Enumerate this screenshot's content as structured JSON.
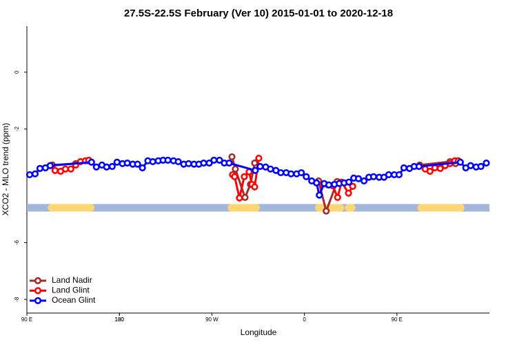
{
  "chart_data": {
    "type": "line",
    "title": "27.5S-22.5S February (Ver 10)   2015-01-01 to 2020-12-18",
    "x_label": "Longitude",
    "y_label": "XCO2 - MLO trend (ppm)",
    "xlim": [
      90,
      540
    ],
    "ylim": [
      1.62,
      -8.48
    ],
    "xticks": [
      {
        "value": 90,
        "label": "90 E"
      },
      180,
      {
        "value": 270,
        "label": "90 W"
      },
      {
        "value": 360,
        "label": "0"
      },
      {
        "value": 450,
        "label": "90 E"
      },
      180
    ],
    "yticks": [
      0,
      -2,
      -6,
      -8
    ],
    "land": [
      [
        114,
        152
      ],
      [
        289,
        313
      ],
      [
        374,
        395
      ],
      [
        403,
        406
      ],
      [
        473.5,
        512
      ]
    ],
    "legend": "bottom-left",
    "series": [
      {
        "name": "Land Nadir",
        "color": "#a52a2a",
        "x": [
          114.8,
          137.5,
          149.6,
          null,
          289.5,
          292.8,
          302.2,
          307.5,
          311.6,
          null,
          373.8,
          381.2,
          391.9,
          null,
          472.2,
          501.6,
          507
        ],
        "values": [
          -3.27,
          -3.22,
          -3.12,
          null,
          -2.98,
          -3.41,
          -4.41,
          -3.95,
          -3.2,
          null,
          -3.83,
          -4.89,
          -3.85,
          null,
          -3.27,
          -3.15,
          -3.22
        ]
      },
      {
        "name": "Land Glint",
        "color": "#ff0000",
        "x": [
          117.4,
          122.8,
          127.5,
          132.8,
          137.5,
          142.2,
          146.9,
          150.2,
          null,
          290.1,
          292.1,
          296.8,
          301.5,
          306.2,
          308.9,
          311.6,
          315.6,
          null,
          377.5,
          382.9,
          387.6,
          392.3,
          396.2,
          402.9,
          407,
          null,
          477.5,
          482.2,
          486.9,
          492.2,
          496.9,
          501.6,
          506.3,
          509.7
        ],
        "values": [
          -3.46,
          -3.49,
          -3.41,
          -3.41,
          -3.27,
          -3.15,
          -3.12,
          -3.1,
          null,
          -3.61,
          -3.68,
          -4.43,
          -3.68,
          -3.51,
          -3.95,
          -4.04,
          -3.03,
          null,
          -3.95,
          -3.97,
          -4.0,
          -4.41,
          -3.87,
          -4.26,
          -4.02,
          null,
          -3.41,
          -3.49,
          -3.37,
          -3.39,
          -3.29,
          -3.22,
          -3.12,
          -3.12
        ]
      },
      {
        "name": "Ocean Glint",
        "color": "#0000ff",
        "x": [
          92.7,
          98,
          102.7,
          108,
          112.7,
          152.9,
          157.6,
          163,
          167.6,
          173,
          177.7,
          183,
          187.7,
          193,
          197.7,
          202.4,
          207.7,
          212.5,
          217.8,
          222.5,
          227.2,
          232.6,
          237.3,
          242.6,
          247.3,
          252.6,
          257.3,
          262,
          267.4,
          272,
          277.4,
          282.1,
          286.8,
          312.2,
          316.9,
          322.3,
          327,
          332.3,
          337,
          342.3,
          347,
          352.4,
          357,
          361.8,
          367.1,
          371.8,
          374.5,
          379.2,
          383.8,
          389.2,
          393.9,
          398.6,
          403.3,
          408,
          412.6,
          418,
          422.7,
          427.3,
          432.7,
          437.4,
          442,
          447.4,
          452.1,
          456.8,
          462.2,
          466.8,
          471.5,
          511.7,
          517,
          521.7,
          527.1,
          531.7,
          537
        ],
        "values": [
          -3.61,
          -3.58,
          -3.39,
          -3.37,
          -3.29,
          -3.17,
          -3.34,
          -3.27,
          -3.34,
          -3.32,
          -3.17,
          -3.22,
          -3.2,
          -3.24,
          -3.24,
          -3.37,
          -3.12,
          -3.15,
          -3.12,
          -3.1,
          -3.1,
          -3.12,
          -3.15,
          -3.24,
          -3.22,
          -3.24,
          -3.24,
          -3.2,
          -3.2,
          -3.1,
          -3.1,
          -3.2,
          -3.2,
          -3.46,
          -3.32,
          -3.34,
          -3.41,
          -3.46,
          -3.54,
          -3.54,
          -3.58,
          -3.58,
          -3.54,
          -3.68,
          -3.83,
          -3.9,
          -4.33,
          -3.92,
          -3.97,
          -3.95,
          -3.92,
          -3.9,
          -3.87,
          -3.73,
          -3.75,
          -3.83,
          -3.7,
          -3.68,
          -3.7,
          -3.7,
          -3.61,
          -3.61,
          -3.61,
          -3.37,
          -3.39,
          -3.32,
          -3.32,
          -3.17,
          -3.37,
          -3.29,
          -3.34,
          -3.32,
          -3.2
        ]
      }
    ]
  }
}
